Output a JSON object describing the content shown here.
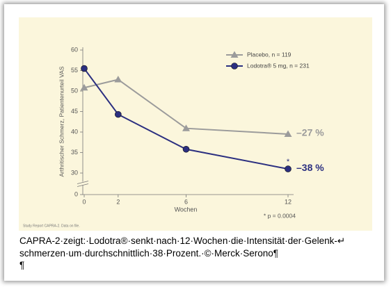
{
  "chart_data": {
    "type": "line",
    "y_label": "Arthritischer Schmerz, Patientenurteil VAS",
    "x_label": "Wochen",
    "x": [
      0,
      2,
      6,
      12
    ],
    "xlim": [
      0,
      12
    ],
    "xticks": [
      0,
      2,
      6,
      12
    ],
    "ylim": [
      0,
      60
    ],
    "yticks": [
      0,
      30,
      35,
      40,
      45,
      50,
      55,
      60
    ],
    "y_axis_break": true,
    "series": [
      {
        "name": "Placebo, n = 119",
        "color": "#9b9b9b",
        "marker": "triangle",
        "values": [
          50.8,
          52.8,
          40.9,
          39.5
        ]
      },
      {
        "name": "Lodotra® 5 mg, n = 231",
        "color": "#2b2f80",
        "marker": "circle",
        "values": [
          55.5,
          44.3,
          35.8,
          31.0
        ]
      }
    ],
    "annotations": [
      "–27 %",
      "–38 %"
    ],
    "significance_marker": "*",
    "footnote": "* p = 0.0004",
    "source": "Study Report CAPRA-2. Data on file."
  },
  "caption": {
    "lines": [
      "CAPRA-2·zeigt:·Lodotra®·senkt·nach·12·Wochen·die·Intensität·der·Gelenk-↵",
      "schmerzen·um·durchschnittlich·38·Prozent.·©·Merck·Serono¶",
      "¶"
    ]
  }
}
